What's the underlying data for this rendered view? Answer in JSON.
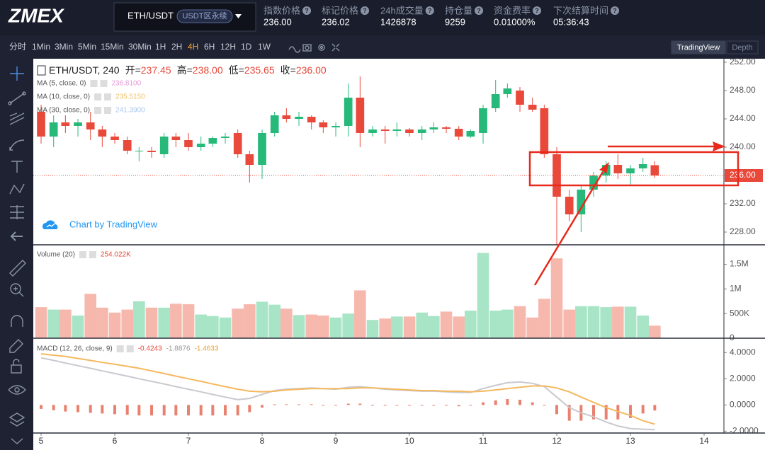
{
  "header": {
    "logo": "ZMEX",
    "symbol": "ETH/USDT",
    "badge": "USDT区永续",
    "stats": [
      {
        "label": "指数价格",
        "value": "236.00"
      },
      {
        "label": "标记价格",
        "value": "236.02"
      },
      {
        "label": "24h成交量",
        "value": "1426878"
      },
      {
        "label": "持仓量",
        "value": "9259"
      },
      {
        "label": "资金费率",
        "value": "0.01000%"
      },
      {
        "label": "下次结算时间",
        "value": "05:36:43"
      }
    ]
  },
  "toolbar": {
    "intervals": [
      "分时",
      "1Min",
      "3Min",
      "5Min",
      "15Min",
      "30Min",
      "1H",
      "2H",
      "4H",
      "6H",
      "12H",
      "1D",
      "1W"
    ],
    "active": "4H",
    "views": [
      "TradingView",
      "Depth"
    ]
  },
  "watermark": "Chart by TradingView",
  "chart_data": [
    {
      "type": "candlestick",
      "title": "ETH/USDT, 240",
      "ohlc_legend": [
        {
          "label": "开=",
          "value": "237.45"
        },
        {
          "label": "高=",
          "value": "238.00"
        },
        {
          "label": "低=",
          "value": "235.65"
        },
        {
          "label": "收=",
          "value": "236.00"
        }
      ],
      "indicators": [
        {
          "name": "MA (5, close, 0)",
          "value": "236.8100",
          "color": "#e49ad8"
        },
        {
          "name": "MA (10, close, 0)",
          "value": "235.5150",
          "color": "#f2c16b"
        },
        {
          "name": "MA (30, close, 0)",
          "value": "241.3900",
          "color": "#a9c6ec"
        }
      ],
      "x": [
        5,
        5.17,
        5.33,
        5.5,
        5.67,
        5.83,
        6,
        6.17,
        6.33,
        6.5,
        6.67,
        6.83,
        7,
        7.17,
        7.33,
        7.5,
        7.67,
        7.83,
        8,
        8.17,
        8.33,
        8.5,
        8.67,
        8.83,
        9,
        9.17,
        9.33,
        9.5,
        9.67,
        9.83,
        10,
        10.17,
        10.33,
        10.5,
        10.67,
        10.83,
        11,
        11.17,
        11.33,
        11.5,
        11.67,
        11.83,
        12,
        12.17,
        12.33,
        12.5,
        12.67,
        12.83,
        13,
        13.17,
        13.33
      ],
      "open": [
        245,
        241.5,
        243.5,
        243,
        243.5,
        242.5,
        241.5,
        241,
        239.5,
        239.5,
        239,
        241.5,
        241,
        240,
        240.5,
        241.3,
        242,
        239,
        237.5,
        242,
        244.5,
        244,
        244.3,
        243.5,
        242.8,
        243,
        247,
        242,
        242.5,
        242.3,
        242.5,
        242,
        242.5,
        242.8,
        242.6,
        241.5,
        242,
        245.5,
        247.5,
        248,
        246,
        245.5,
        239,
        233,
        230.5,
        234,
        236,
        237.5,
        236.3,
        237,
        237.45
      ],
      "high": [
        246,
        244.5,
        244.5,
        244,
        245,
        243,
        242,
        241.5,
        240,
        240,
        242,
        242,
        242,
        241.5,
        241.5,
        242,
        242.5,
        239.5,
        242.5,
        245,
        245.5,
        245,
        244.5,
        243.8,
        243.5,
        249,
        250,
        243,
        243,
        243.5,
        242.7,
        243,
        243.5,
        243,
        243,
        242.5,
        246,
        249.5,
        249,
        248.5,
        247,
        246,
        240,
        234,
        234.5,
        236.5,
        238,
        239,
        237.5,
        238.5,
        238
      ],
      "low": [
        240.5,
        240,
        242,
        241.5,
        241,
        240,
        240.5,
        239,
        238,
        238.5,
        238.5,
        240,
        239.5,
        239.5,
        240,
        240.5,
        238.5,
        235,
        235.5,
        241.5,
        243.5,
        243,
        242.5,
        242,
        241.5,
        241.5,
        240,
        241.5,
        240.5,
        241.5,
        241.5,
        241,
        242,
        242,
        241,
        241.3,
        240.5,
        245,
        247,
        245,
        245,
        238.5,
        225,
        229.5,
        228,
        233,
        235,
        235.5,
        234.5,
        236.5,
        235.65
      ],
      "close": [
        241.5,
        243.5,
        243,
        243.5,
        242.5,
        241.5,
        241,
        239.5,
        239.5,
        239.3,
        241.5,
        241,
        240,
        240.5,
        241.3,
        241.5,
        239,
        237.5,
        242,
        244.5,
        244,
        244.3,
        243.5,
        242.8,
        243,
        247,
        242,
        242.5,
        242.3,
        242.5,
        242,
        242.5,
        242.8,
        242.6,
        241.5,
        242.3,
        245.5,
        247.5,
        248.3,
        246,
        245.3,
        239,
        233,
        230.5,
        234,
        236,
        237.5,
        236.3,
        237,
        237.6,
        236
      ],
      "up_color": "#26b97a",
      "down_color": "#e8493a",
      "xlim": [
        4.894,
        14.269
      ],
      "xticks": [
        5,
        6,
        7,
        8,
        9,
        10,
        11,
        12,
        13,
        14
      ],
      "ylim": [
        226.2,
        252.5
      ],
      "yticks": [
        {
          "value": 228,
          "label": "228.00"
        },
        {
          "value": 232,
          "label": "232.00"
        },
        {
          "value": 236,
          "label": "236.00"
        },
        {
          "value": 240,
          "label": "240.00"
        },
        {
          "value": 244,
          "label": "244.00"
        },
        {
          "value": 248,
          "label": "248.00"
        },
        {
          "value": 252,
          "label": "252.00"
        }
      ],
      "last_price": {
        "value": 236,
        "label": "236.00"
      }
    },
    {
      "type": "bar",
      "title": "Volume (20)",
      "legend_value": "254.022K",
      "values": [
        630000,
        580000,
        580000,
        460000,
        900000,
        620000,
        520000,
        580000,
        750000,
        620000,
        620000,
        700000,
        690000,
        480000,
        450000,
        420000,
        600000,
        690000,
        740000,
        680000,
        600000,
        470000,
        480000,
        460000,
        420000,
        500000,
        970000,
        370000,
        400000,
        440000,
        440000,
        520000,
        450000,
        540000,
        440000,
        560000,
        1730000,
        560000,
        580000,
        650000,
        420000,
        800000,
        1620000,
        580000,
        650000,
        650000,
        630000,
        640000,
        640000,
        460000,
        254022
      ],
      "up_color": "#a8e4c6",
      "down_color": "#f6b8ad",
      "ylim": [
        0,
        1880000
      ],
      "yticks": [
        0,
        {
          "value": 500000,
          "label": "500K"
        },
        {
          "value": 1000000,
          "label": "1M"
        },
        {
          "value": 1500000,
          "label": "1.5M"
        }
      ]
    },
    {
      "type": "macd",
      "title": "MACD (12, 26, close, 9)",
      "series": [
        {
          "legend": "-0.4243",
          "color": "#e8816f",
          "kind": "histogram",
          "values": [
            -0.3,
            -0.4,
            -0.5,
            -0.55,
            -0.6,
            -0.65,
            -0.7,
            -0.75,
            -0.8,
            -0.8,
            -0.8,
            -0.8,
            -0.8,
            -0.8,
            -0.8,
            -0.8,
            -0.8,
            -0.55,
            -0.2,
            0.05,
            0.05,
            0.05,
            0.05,
            0,
            -0.05,
            0.1,
            0.1,
            0,
            -0.05,
            -0.05,
            -0.05,
            -0.05,
            -0.05,
            -0.05,
            -0.1,
            -0.05,
            0.2,
            0.35,
            0.45,
            0.4,
            0.2,
            -0.05,
            -0.7,
            -1.2,
            -1.2,
            -1.1,
            -1.1,
            -1.1,
            -1.0,
            -0.65,
            -0.4243
          ]
        },
        {
          "legend": "-1.8876",
          "color": "#c9c9cf",
          "kind": "line",
          "values": [
            3.6,
            3.4,
            3.2,
            3.0,
            2.8,
            2.6,
            2.4,
            2.2,
            2.0,
            1.8,
            1.6,
            1.4,
            1.2,
            1.0,
            0.8,
            0.6,
            0.4,
            0.5,
            0.8,
            1.1,
            1.2,
            1.25,
            1.3,
            1.25,
            1.2,
            1.35,
            1.4,
            1.3,
            1.2,
            1.15,
            1.1,
            1.05,
            1.05,
            1.0,
            0.95,
            0.95,
            1.25,
            1.5,
            1.7,
            1.75,
            1.65,
            1.4,
            0.6,
            -0.2,
            -0.6,
            -0.9,
            -1.3,
            -1.6,
            -1.8,
            -1.85,
            -1.8876
          ]
        },
        {
          "legend": "-1.4633",
          "color": "#f5b85e",
          "kind": "line",
          "values": [
            3.9,
            3.8,
            3.7,
            3.55,
            3.4,
            3.25,
            3.1,
            2.95,
            2.8,
            2.6,
            2.4,
            2.2,
            2.0,
            1.8,
            1.6,
            1.4,
            1.2,
            1.05,
            1.0,
            1.05,
            1.15,
            1.2,
            1.25,
            1.25,
            1.25,
            1.25,
            1.3,
            1.3,
            1.25,
            1.2,
            1.15,
            1.1,
            1.1,
            1.05,
            1.05,
            1.0,
            1.05,
            1.15,
            1.25,
            1.35,
            1.45,
            1.45,
            1.3,
            1.0,
            0.6,
            0.2,
            -0.2,
            -0.5,
            -0.8,
            -1.2,
            -1.4633
          ]
        }
      ],
      "ylim": [
        -2.14,
        5.04
      ],
      "yticks": [
        {
          "value": -2,
          "label": "-2.0000"
        },
        {
          "value": 0,
          "label": "0.0000"
        },
        {
          "value": 2,
          "label": "2.0000"
        },
        {
          "value": 4,
          "label": "4.0000"
        }
      ]
    }
  ]
}
